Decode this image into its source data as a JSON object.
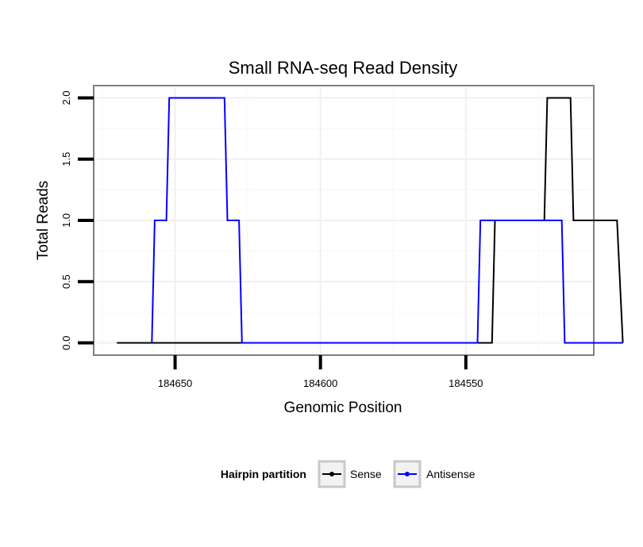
{
  "chart_data": {
    "type": "line",
    "title": "Small RNA-seq Read Density",
    "xlabel": "Genomic Position",
    "ylabel": "Total Reads",
    "xlim": [
      184678,
      184506
    ],
    "ylim": [
      -0.1,
      2.1
    ],
    "x_reversed": true,
    "x_ticks": [
      184650,
      184600,
      184550
    ],
    "x_tick_labels": [
      "184650",
      "184600",
      "184550"
    ],
    "y_ticks": [
      0.0,
      0.5,
      1.0,
      1.5,
      2.0
    ],
    "y_tick_labels": [
      "0.0",
      "0.5",
      "1.0",
      "1.5",
      "2.0"
    ],
    "grid": true,
    "legend": {
      "title": "Hairpin partition",
      "position": "bottom"
    },
    "series": [
      {
        "name": "Sense",
        "color": "#000000",
        "points": [
          [
            184670,
            0
          ],
          [
            184541,
            0
          ],
          [
            184540,
            1
          ],
          [
            184523,
            1
          ],
          [
            184522,
            2
          ],
          [
            184514,
            2
          ],
          [
            184513,
            1
          ],
          [
            184498,
            1
          ],
          [
            184496,
            0
          ]
        ]
      },
      {
        "name": "Antisense",
        "color": "#0000ff",
        "points": [
          [
            184658,
            0
          ],
          [
            184657,
            1
          ],
          [
            184653,
            1
          ],
          [
            184652,
            2
          ],
          [
            184633,
            2
          ],
          [
            184632,
            1
          ],
          [
            184628,
            1
          ],
          [
            184627,
            0
          ],
          [
            184546,
            0
          ],
          [
            184545,
            1
          ],
          [
            184517,
            1
          ],
          [
            184516,
            0
          ],
          [
            184496,
            0
          ]
        ]
      }
    ]
  }
}
